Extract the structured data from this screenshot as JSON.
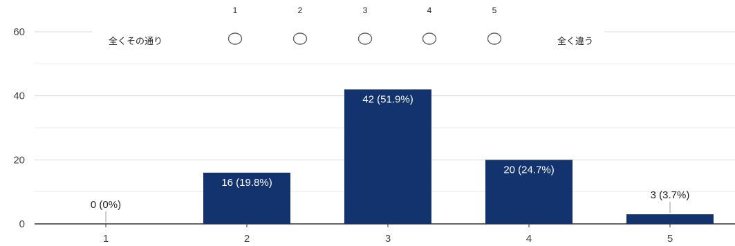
{
  "chart_data": {
    "type": "bar",
    "categories": [
      "1",
      "2",
      "3",
      "4",
      "5"
    ],
    "values": [
      0,
      16,
      42,
      20,
      3
    ],
    "data_labels": [
      "0 (0%)",
      "16 (19.8%)",
      "42 (51.9%)",
      "20 (24.7%)",
      "3 (3.7%)"
    ],
    "ylim": [
      0,
      60
    ],
    "yticks": [
      "0",
      "20",
      "40",
      "60"
    ],
    "grid": true,
    "bar_color": "#12336e",
    "title": "",
    "xlabel": "",
    "ylabel": ""
  },
  "scale_overlay": {
    "left_label": "全くその通り",
    "right_label": "全く違う",
    "numbers": [
      "1",
      "2",
      "3",
      "4",
      "5"
    ]
  }
}
